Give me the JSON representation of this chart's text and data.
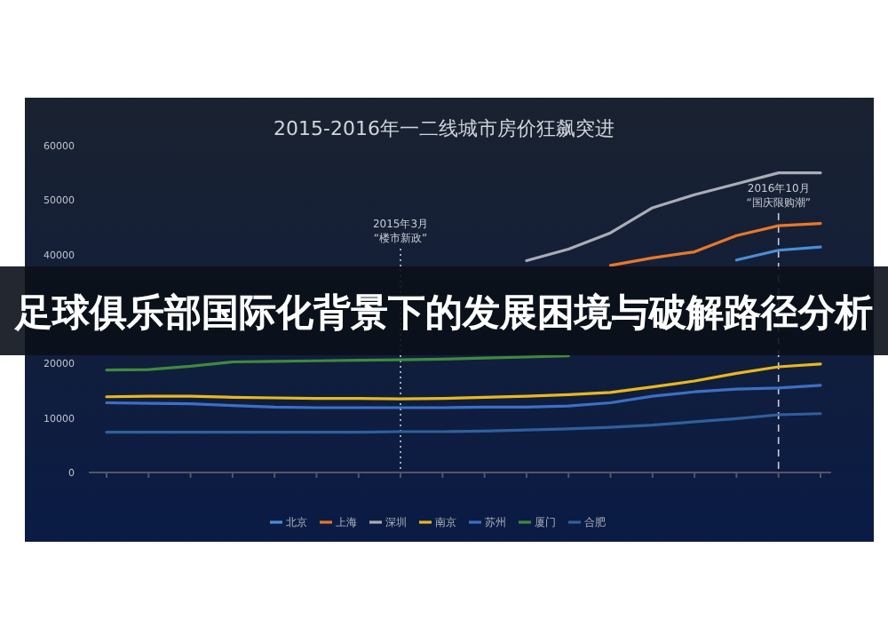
{
  "chart_data": {
    "type": "line",
    "title": "2015-2016年一二线城市房价狂飙突进",
    "categories": [
      null,
      null,
      null,
      null,
      null,
      null,
      null,
      null,
      null,
      null,
      null,
      null,
      null,
      null,
      null,
      null,
      null,
      null
    ],
    "series": [
      {
        "name": "北京",
        "color": "#4a8fd8",
        "values": [
          null,
          null,
          null,
          null,
          null,
          null,
          null,
          null,
          null,
          null,
          null,
          null,
          null,
          null,
          null,
          39000,
          40800,
          41400
        ]
      },
      {
        "name": "上海",
        "color": "#e8782a",
        "values": [
          null,
          null,
          null,
          null,
          null,
          null,
          null,
          null,
          null,
          null,
          null,
          null,
          38000,
          39400,
          40500,
          43500,
          45300,
          45700
        ]
      },
      {
        "name": "深圳",
        "color": "#a9adb5",
        "values": [
          null,
          null,
          null,
          null,
          null,
          null,
          null,
          null,
          null,
          null,
          38900,
          41000,
          44000,
          48600,
          51000,
          53000,
          55000,
          55000
        ]
      },
      {
        "name": "南京",
        "color": "#e8b81c",
        "values": [
          13900,
          14000,
          14000,
          13800,
          13700,
          13600,
          13600,
          13500,
          13600,
          13800,
          14000,
          14300,
          14700,
          15700,
          16800,
          18200,
          19400,
          19900
        ]
      },
      {
        "name": "苏州",
        "color": "#3d6fc4",
        "values": [
          12800,
          12700,
          12600,
          12300,
          12000,
          11900,
          11900,
          11900,
          11900,
          12000,
          12000,
          12200,
          12800,
          14000,
          14800,
          15300,
          15500,
          16000
        ]
      },
      {
        "name": "厦门",
        "color": "#3f8a3c",
        "values": [
          18800,
          18900,
          19500,
          20300,
          20400,
          20500,
          20600,
          20700,
          20800,
          21000,
          21200,
          21400,
          null,
          null,
          null,
          null,
          null,
          null
        ]
      },
      {
        "name": "合肥",
        "color": "#2f5f9e",
        "values": [
          7400,
          7400,
          7400,
          7400,
          7400,
          7400,
          7400,
          7500,
          7500,
          7600,
          7800,
          8000,
          8300,
          8700,
          9300,
          9900,
          10600,
          10800
        ]
      }
    ],
    "ylim": [
      0,
      60000
    ],
    "yticks": [
      0,
      10000,
      20000,
      40000,
      50000,
      60000
    ],
    "annotations": [
      "足球俱乐部国际化背景下的发展困境与破解路径分析",
      "2015年3月\n“楼市新政”",
      "2016年10月\n“国庆限购潮”"
    ],
    "legend": "bottom"
  }
}
